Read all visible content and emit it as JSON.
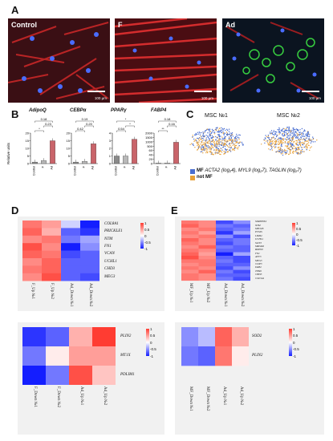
{
  "panel_letters": {
    "a": "A",
    "b": "B",
    "c": "C",
    "d": "D",
    "e": "E"
  },
  "panel_a": {
    "images": [
      {
        "label": "Control",
        "scale": "100 µm"
      },
      {
        "label": "F",
        "scale": "100 µm"
      },
      {
        "label": "Ad",
        "scale": "100 µm"
      }
    ]
  },
  "panel_b": {
    "ylabel": "Relative units",
    "charts": [
      {
        "title": "AdipoQ"
      },
      {
        "title": "CEBPα"
      },
      {
        "title": "PPARγ"
      },
      {
        "title": "FABP4"
      }
    ]
  },
  "chart_data": [
    {
      "type": "bar",
      "title": "AdipoQ",
      "categories": [
        "Control",
        "F",
        "Ad"
      ],
      "values": [
        1,
        2,
        15
      ],
      "ylim": [
        0,
        20
      ],
      "yticks": [
        "0",
        "5",
        "10",
        "15",
        "20"
      ],
      "annotations": [
        "*",
        "0.23",
        "0.18"
      ],
      "ylabel": "Relative units"
    },
    {
      "type": "bar",
      "title": "CEBPα",
      "categories": [
        "Control",
        "F",
        "Ad"
      ],
      "values": [
        1,
        1.5,
        13
      ],
      "ylim": [
        0,
        20
      ],
      "yticks": [
        "0",
        "5",
        "10",
        "15",
        "20"
      ],
      "annotations": [
        "0.42",
        "0.20",
        "0.19"
      ],
      "ylabel": "Relative units"
    },
    {
      "type": "bar",
      "title": "PPARγ",
      "categories": [
        "Control",
        "F",
        "Ad"
      ],
      "values": [
        1,
        1,
        3.2
      ],
      "ylim": [
        0,
        4
      ],
      "yticks": [
        "0",
        "1",
        "2",
        "3",
        "4"
      ],
      "annotations": [
        "0.54",
        "*",
        "*"
      ],
      "ylabel": "Relative units"
    },
    {
      "type": "bar",
      "title": "FABP4",
      "categories": [
        "Control",
        "F",
        "Ad"
      ],
      "values": [
        2,
        2.5,
        950
      ],
      "ylim": [
        0,
        2000
      ],
      "yticks": [
        "0",
        "20",
        "40",
        "60",
        "500",
        "1000",
        "1500",
        "2000"
      ],
      "annotations": [
        "**",
        "0.16",
        "0.18"
      ],
      "ylabel": "Relative units"
    }
  ],
  "panel_c": {
    "titles": [
      "MSC №1",
      "MSC №2"
    ],
    "legend_mf": "MF",
    "legend_mf_genes": "ACTA2 (log₂4), MYL9 (log₂7), TAGLIN (log₂7)",
    "legend_not_mf": "not MF",
    "colors": {
      "mf": "#4a6fd1",
      "not_mf": "#e8a23a"
    }
  },
  "colorbar_ticks": [
    "1",
    "0.5",
    "0",
    "-0.5",
    "-1"
  ],
  "panel_d_top": {
    "rows": [
      "COL8A1",
      "PRICKLE1",
      "NTM",
      "FN1",
      "VCAN",
      "UCHL1",
      "CHD3",
      "MEG3"
    ],
    "cols": [
      "F_Up №1",
      "F_Up №2",
      "Ad_Down №1",
      "Ad_Down №2"
    ],
    "values": [
      [
        0.7,
        0.5,
        -0.2,
        -1
      ],
      [
        0.8,
        0.4,
        -0.7,
        -0.9
      ],
      [
        0.6,
        0.7,
        -0.6,
        -0.4
      ],
      [
        0.9,
        0.6,
        -1,
        -0.5
      ],
      [
        0.8,
        0.7,
        -0.8,
        -0.7
      ],
      [
        0.6,
        0.8,
        -0.7,
        -0.7
      ],
      [
        0.7,
        0.8,
        -0.7,
        -0.7
      ],
      [
        0.6,
        0.9,
        -0.7,
        -0.8
      ]
    ]
  },
  "panel_d_bottom": {
    "rows": [
      "PLIN2",
      "MT1X",
      "PDLIM1"
    ],
    "cols": [
      "F_Down №1",
      "F_Down №2",
      "Ad_Up №1",
      "Ad_Up №2"
    ],
    "values": [
      [
        -0.9,
        -0.7,
        0.4,
        1
      ],
      [
        -0.6,
        0.1,
        0.5,
        0.5
      ],
      [
        -1,
        -0.6,
        0.9,
        0.3
      ]
    ]
  },
  "panel_e_top": {
    "rows": [
      "SERPINE2",
      "NTM",
      "MYO1B",
      "PTGIS",
      "LIMS2",
      "UCHL1",
      "SLIT3",
      "MRGM2",
      "RDH10",
      "FN1",
      "AFF3",
      "MEG3",
      "CLIP3",
      "DAB2",
      "TPM2",
      "CHD3",
      "COL5A1"
    ],
    "cols": [
      "MF_Up №1",
      "MF_Up №2",
      "Ad_Down №1",
      "Ad_Down №2"
    ],
    "values": [
      [
        0.7,
        0.6,
        -0.8,
        -0.5
      ],
      [
        0.8,
        0.6,
        -0.6,
        -0.7
      ],
      [
        0.6,
        0.7,
        -0.7,
        -0.6
      ],
      [
        0.7,
        0.5,
        -0.9,
        -0.4
      ],
      [
        0.6,
        0.7,
        -0.5,
        -0.8
      ],
      [
        0.8,
        0.6,
        -0.7,
        -0.6
      ],
      [
        0.7,
        0.6,
        -0.8,
        -0.6
      ],
      [
        0.6,
        0.8,
        -0.6,
        -0.7
      ],
      [
        0.7,
        0.6,
        -0.7,
        -0.7
      ],
      [
        0.8,
        0.5,
        -1,
        -0.4
      ],
      [
        0.9,
        0.6,
        -0.7,
        -0.8
      ],
      [
        0.7,
        0.7,
        -0.6,
        -0.8
      ],
      [
        0.6,
        0.7,
        -0.7,
        -0.7
      ],
      [
        0.7,
        0.6,
        -0.8,
        -0.5
      ],
      [
        0.6,
        0.8,
        -0.6,
        -0.8
      ],
      [
        0.7,
        0.6,
        -0.7,
        -0.7
      ],
      [
        0.7,
        0.6,
        -0.6,
        -0.8
      ]
    ]
  },
  "panel_e_bottom": {
    "rows": [
      "SOD2",
      "PLIN2"
    ],
    "cols": [
      "MF_Down №1",
      "MF_Down №2",
      "Ad_Up №1",
      "Ad_Up №2"
    ],
    "values": [
      [
        -0.5,
        -0.3,
        0.8,
        0.4
      ],
      [
        -0.6,
        -0.7,
        0.7,
        0.1
      ]
    ]
  }
}
